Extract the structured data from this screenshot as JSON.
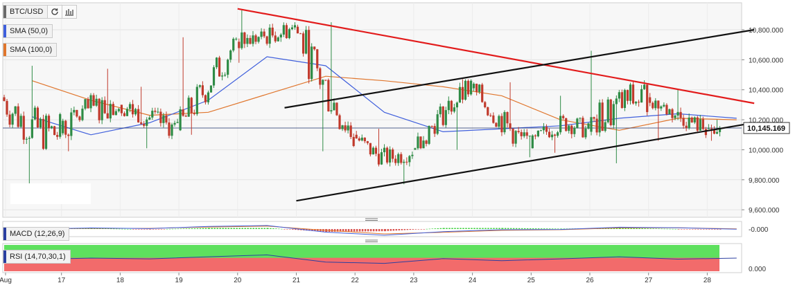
{
  "toolbar": {
    "symbol": "BTC/USD",
    "refresh_icon": "refresh-icon",
    "bars_icon": "bar-chart-icon"
  },
  "legends": {
    "sma50": "SMA (50,0)",
    "sma100": "SMA (100,0)",
    "macd": "MACD (12,26,9)",
    "rsi": "RSI (14,70,30,1)"
  },
  "colors": {
    "up": "#2e8b45",
    "down": "#c0392b",
    "sma50": "#3f5fdc",
    "sma100": "#e0762d",
    "trend_red": "#e21b1b",
    "trend_black": "#111111",
    "rsi_upper": "#5ee05e",
    "rsi_lower": "#f26b6b"
  },
  "chart_data": [
    {
      "type": "candlestick",
      "title": "BTC/USD",
      "xlabel": "",
      "ylabel": "",
      "x_ticks": [
        "Aug",
        "17",
        "18",
        "19",
        "20",
        "21",
        "22",
        "23",
        "24",
        "25",
        "26",
        "27",
        "28"
      ],
      "y_ticks": [
        "10,800.000",
        "10,600.000",
        "10,400.000",
        "10,200.000",
        "10,000.000",
        "9,800.000",
        "9,600.000"
      ],
      "ylim": [
        9550,
        10980
      ],
      "price_label": "10,145.169",
      "price": 10145.169,
      "daily_path": [
        {
          "day": "16",
          "open": 10350,
          "high": 10560,
          "low": 9760,
          "close": 10110
        },
        {
          "day": "17",
          "open": 10110,
          "high": 10540,
          "low": 9990,
          "close": 10300
        },
        {
          "day": "18",
          "open": 10300,
          "high": 10420,
          "low": 10010,
          "close": 10130
        },
        {
          "day": "19",
          "open": 10130,
          "high": 10750,
          "low": 10100,
          "close": 10720
        },
        {
          "day": "20",
          "open": 10720,
          "high": 10930,
          "low": 10580,
          "close": 10820
        },
        {
          "day": "21",
          "open": 10820,
          "high": 10850,
          "low": 9990,
          "close": 10100
        },
        {
          "day": "22",
          "open": 10100,
          "high": 10140,
          "low": 9770,
          "close": 10000
        },
        {
          "day": "23",
          "open": 10000,
          "high": 10470,
          "low": 10000,
          "close": 10410
        },
        {
          "day": "24",
          "open": 10410,
          "high": 10450,
          "low": 9950,
          "close": 10010
        },
        {
          "day": "25",
          "open": 10010,
          "high": 10360,
          "low": 9980,
          "close": 10120
        },
        {
          "day": "26",
          "open": 10120,
          "high": 10660,
          "low": 9910,
          "close": 10350
        },
        {
          "day": "27",
          "open": 10350,
          "high": 10400,
          "low": 10060,
          "close": 10140
        },
        {
          "day": "28",
          "open": 10140,
          "high": 10200,
          "low": 10060,
          "close": 10145
        }
      ],
      "sma50": [
        10220,
        10100,
        10180,
        10330,
        10620,
        10560,
        10250,
        10120,
        10140,
        10160,
        10210,
        10240,
        10210
      ],
      "sma100": [
        10460,
        10330,
        10230,
        10250,
        10370,
        10490,
        10460,
        10420,
        10360,
        10200,
        10130,
        10210,
        10200
      ],
      "trendlines": [
        {
          "name": "resistance",
          "color": "red",
          "from": {
            "day": 20,
            "value": 10940
          },
          "to": {
            "day": 28.8,
            "value": 10310
          }
        },
        {
          "name": "channel-top",
          "color": "black",
          "from": {
            "day": 20.8,
            "value": 10280
          },
          "to": {
            "day": 28.8,
            "value": 10800
          }
        },
        {
          "name": "channel-bottom",
          "color": "black",
          "from": {
            "day": 21,
            "value": 9660
          },
          "to": {
            "day": 28.8,
            "value": 10180
          }
        }
      ],
      "grid": true
    },
    {
      "type": "line",
      "title": "MACD (12,26,9)",
      "y_ticks": [
        "-0.000"
      ],
      "macd": [
        0,
        0.5,
        0.2,
        1.2,
        1.6,
        -1.4,
        -2.8,
        -1.2,
        -0.3,
        -0.2,
        0.8,
        0.6,
        -0.1
      ],
      "signal": [
        0,
        0.3,
        0.3,
        0.9,
        1.3,
        -0.6,
        -2.2,
        -1.5,
        -0.6,
        -0.3,
        0.5,
        0.6,
        0.1
      ]
    },
    {
      "type": "line",
      "title": "RSI (14,70,30,1)",
      "y_ticks": [
        "0.000"
      ],
      "upper_band": 70,
      "lower_band": 30,
      "rsi": [
        45,
        50,
        47,
        55,
        62,
        35,
        30,
        48,
        40,
        47,
        55,
        46,
        50
      ]
    }
  ]
}
